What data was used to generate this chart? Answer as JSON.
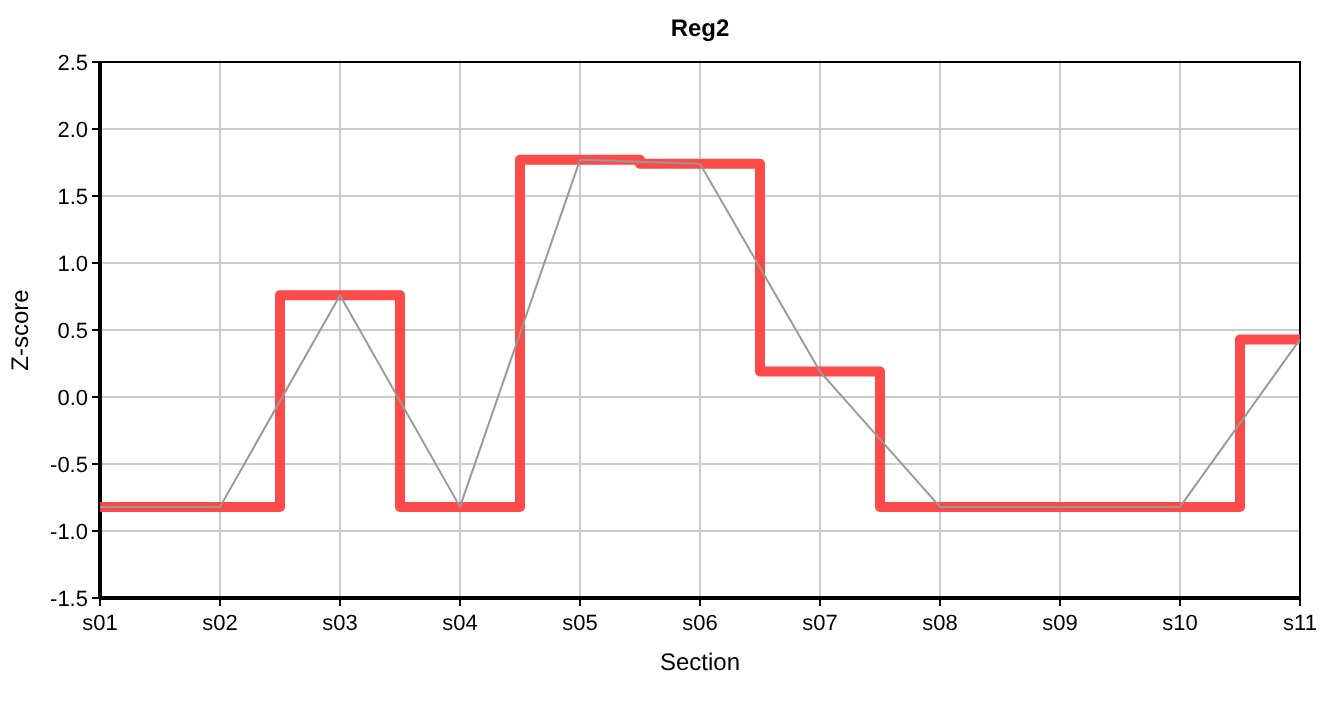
{
  "chart_data": {
    "type": "line",
    "title": "Reg2",
    "xlabel": "Section",
    "ylabel": "Z-score",
    "categories": [
      "s01",
      "s02",
      "s03",
      "s04",
      "s05",
      "s06",
      "s07",
      "s08",
      "s09",
      "s10",
      "s11"
    ],
    "series": [
      {
        "type": "step",
        "color": "#ff4040",
        "values": [
          -0.82,
          -0.82,
          0.76,
          -0.82,
          1.77,
          1.74,
          0.19,
          -0.82,
          -0.82,
          -0.82,
          0.43
        ]
      },
      {
        "type": "line",
        "color": "#999999",
        "values": [
          -0.82,
          -0.82,
          0.76,
          -0.82,
          1.77,
          1.74,
          0.19,
          -0.82,
          -0.82,
          -0.82,
          0.43
        ]
      }
    ],
    "ylim": [
      -1.5,
      2.5
    ],
    "yticks": [
      {
        "value": -1.5,
        "label": "-1.5"
      },
      {
        "value": -1,
        "label": "-1.0"
      },
      {
        "value": -0.5,
        "label": "-0.5"
      },
      {
        "value": 0,
        "label": "0.0"
      },
      {
        "value": 0.5,
        "label": "0.5"
      },
      {
        "value": 1,
        "label": "1.0"
      },
      {
        "value": 1.5,
        "label": "1.5"
      },
      {
        "value": 2,
        "label": "2.0"
      },
      {
        "value": 2.5,
        "label": "2.5"
      }
    ],
    "grid": true,
    "marker": "none",
    "line_style": "solid"
  }
}
